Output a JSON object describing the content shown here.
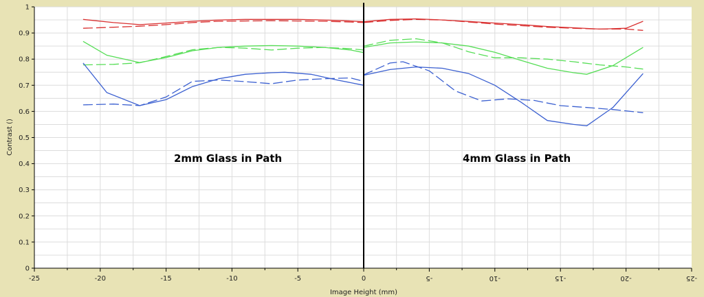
{
  "chart_data": {
    "type": "line",
    "xlabel": "Image Height (mm)",
    "ylabel": "Contrast ()",
    "ylim": [
      0,
      1
    ],
    "grid": true,
    "y_ticks": [
      "0",
      "0.1",
      "0.2",
      "0.3",
      "0.4",
      "0.5",
      "0.6",
      "0.7",
      "0.8",
      "0.9",
      "1"
    ],
    "x_tick_labels_left": [
      "-25",
      "-20",
      "-15",
      "-10",
      "-5",
      "0"
    ],
    "x_tick_labels_right": [
      "-5",
      "-10",
      "-15",
      "-20",
      "-25"
    ],
    "annotations": [
      "2mm Glass in Path",
      "4mm Glass in Path"
    ],
    "panels": [
      {
        "xlim": [
          -25,
          0
        ],
        "series": [
          {
            "color": "#d93030",
            "style": "solid",
            "x": [
              -21.3,
              -19,
              -17,
              -15,
              -13,
              -11,
              -9,
              -7,
              -5,
              -3,
              -1,
              0
            ],
            "y": [
              0.952,
              0.94,
              0.932,
              0.938,
              0.945,
              0.95,
              0.952,
              0.952,
              0.952,
              0.95,
              0.946,
              0.943
            ]
          },
          {
            "color": "#d93030",
            "style": "dashed",
            "x": [
              -21.3,
              -19,
              -17,
              -15,
              -13,
              -11,
              -9,
              -7,
              -5,
              -3,
              -1,
              0
            ],
            "y": [
              0.918,
              0.922,
              0.926,
              0.932,
              0.94,
              0.945,
              0.946,
              0.947,
              0.946,
              0.945,
              0.942,
              0.94
            ]
          },
          {
            "color": "#55dd55",
            "style": "solid",
            "x": [
              -21.3,
              -19.5,
              -17,
              -15,
              -13,
              -11,
              -9,
              -7,
              -5,
              -3,
              -1,
              0
            ],
            "y": [
              0.868,
              0.815,
              0.787,
              0.806,
              0.832,
              0.845,
              0.85,
              0.852,
              0.85,
              0.845,
              0.835,
              0.825
            ]
          },
          {
            "color": "#55dd55",
            "style": "dashed",
            "x": [
              -21.3,
              -19,
              -17,
              -15,
              -13,
              -11,
              -9,
              -7,
              -5,
              -3,
              -1,
              0
            ],
            "y": [
              0.778,
              0.78,
              0.786,
              0.81,
              0.836,
              0.845,
              0.842,
              0.835,
              0.842,
              0.845,
              0.84,
              0.835
            ]
          },
          {
            "color": "#3a5fd0",
            "style": "solid",
            "x": [
              -21.3,
              -19.5,
              -17,
              -15,
              -13,
              -11,
              -9,
              -7,
              -6,
              -4,
              -2,
              0
            ],
            "y": [
              0.785,
              0.672,
              0.622,
              0.645,
              0.695,
              0.725,
              0.742,
              0.748,
              0.75,
              0.742,
              0.72,
              0.7
            ]
          },
          {
            "color": "#3a5fd0",
            "style": "dashed",
            "x": [
              -21.3,
              -19,
              -17,
              -15,
              -13,
              -11,
              -9,
              -7,
              -5,
              -3,
              -1,
              0
            ],
            "y": [
              0.625,
              0.628,
              0.622,
              0.655,
              0.715,
              0.72,
              0.714,
              0.706,
              0.72,
              0.725,
              0.728,
              0.715
            ]
          }
        ]
      },
      {
        "xlim": [
          0,
          -25
        ],
        "series": [
          {
            "color": "#d93030",
            "style": "solid",
            "x": [
              0,
              -2,
              -4,
              -6,
              -8,
              -10,
              -12,
              -14,
              -16,
              -18,
              -20,
              -21.3
            ],
            "y": [
              0.943,
              0.952,
              0.954,
              0.95,
              0.944,
              0.938,
              0.932,
              0.925,
              0.92,
              0.915,
              0.918,
              0.945
            ]
          },
          {
            "color": "#d93030",
            "style": "dashed",
            "x": [
              0,
              -2,
              -4,
              -6,
              -8,
              -10,
              -12,
              -14,
              -16,
              -18,
              -20,
              -21.3
            ],
            "y": [
              0.94,
              0.948,
              0.952,
              0.95,
              0.942,
              0.934,
              0.928,
              0.922,
              0.918,
              0.915,
              0.915,
              0.91
            ]
          },
          {
            "color": "#55dd55",
            "style": "solid",
            "x": [
              0,
              -2,
              -4,
              -6,
              -8,
              -10,
              -12,
              -14,
              -16,
              -17,
              -19,
              -21.3
            ],
            "y": [
              0.845,
              0.862,
              0.866,
              0.862,
              0.85,
              0.826,
              0.795,
              0.765,
              0.748,
              0.742,
              0.775,
              0.845
            ]
          },
          {
            "color": "#55dd55",
            "style": "dashed",
            "x": [
              0,
              -2,
              -4,
              -6,
              -8,
              -10,
              -12,
              -14,
              -16,
              -18,
              -20,
              -21.3
            ],
            "y": [
              0.85,
              0.872,
              0.878,
              0.862,
              0.828,
              0.805,
              0.805,
              0.8,
              0.79,
              0.778,
              0.77,
              0.762
            ]
          },
          {
            "color": "#3a5fd0",
            "style": "solid",
            "x": [
              0,
              -2,
              -4,
              -6,
              -8,
              -10,
              -12,
              -14,
              -16,
              -17,
              -19,
              -21.3
            ],
            "y": [
              0.738,
              0.76,
              0.77,
              0.765,
              0.745,
              0.7,
              0.635,
              0.565,
              0.55,
              0.545,
              0.615,
              0.745
            ]
          },
          {
            "color": "#3a5fd0",
            "style": "dashed",
            "x": [
              0,
              -2,
              -3,
              -5,
              -7,
              -9,
              -11,
              -13,
              -15,
              -17,
              -19,
              -21.3
            ],
            "y": [
              0.74,
              0.785,
              0.79,
              0.755,
              0.678,
              0.64,
              0.648,
              0.642,
              0.622,
              0.615,
              0.607,
              0.595
            ]
          }
        ]
      }
    ]
  }
}
